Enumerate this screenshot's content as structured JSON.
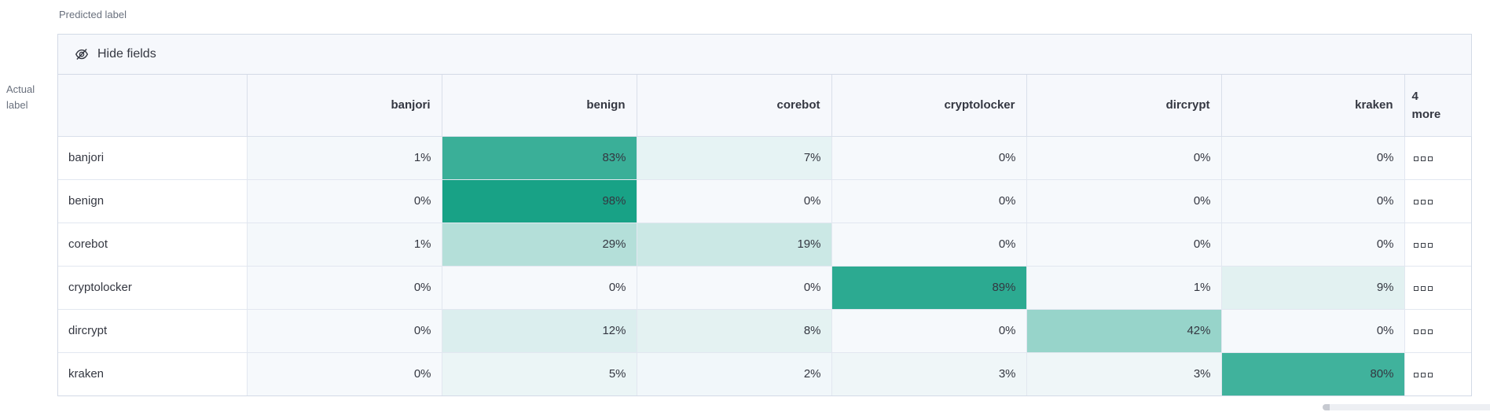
{
  "axes": {
    "predicted_label": "Predicted label",
    "actual_label": "Actual label"
  },
  "toolbar": {
    "hide_fields_label": "Hide fields",
    "hide_fields_icon": "eye-closed-icon"
  },
  "more_column": {
    "count": "4",
    "label": "more",
    "cell_icon": "boxes-horizontal-icon"
  },
  "colors": {
    "heat_zero": "#F6F9FC",
    "heat_full": "#13A084",
    "header_bg": "#F6F8FC",
    "border": "#D3DAE6",
    "text": "#343741",
    "muted_text": "#69707D"
  },
  "chart_data": {
    "type": "heatmap",
    "title": "",
    "xlabel": "Predicted label",
    "ylabel": "Actual label",
    "x_categories": [
      "banjori",
      "benign",
      "corebot",
      "cryptolocker",
      "dircrypt",
      "kraken"
    ],
    "y_categories": [
      "banjori",
      "benign",
      "corebot",
      "cryptolocker",
      "dircrypt",
      "kraken"
    ],
    "values_unit": "percent",
    "values": [
      [
        1,
        83,
        7,
        0,
        0,
        0
      ],
      [
        0,
        98,
        0,
        0,
        0,
        0
      ],
      [
        1,
        29,
        19,
        0,
        0,
        0
      ],
      [
        0,
        0,
        0,
        89,
        1,
        9
      ],
      [
        0,
        12,
        8,
        0,
        42,
        0
      ],
      [
        0,
        5,
        2,
        3,
        3,
        80
      ]
    ],
    "hidden_columns_count": 4,
    "legend": "none",
    "color_scale": {
      "min_color": "#F6F9FC",
      "max_color": "#13A084",
      "domain": [
        0,
        100
      ]
    }
  }
}
